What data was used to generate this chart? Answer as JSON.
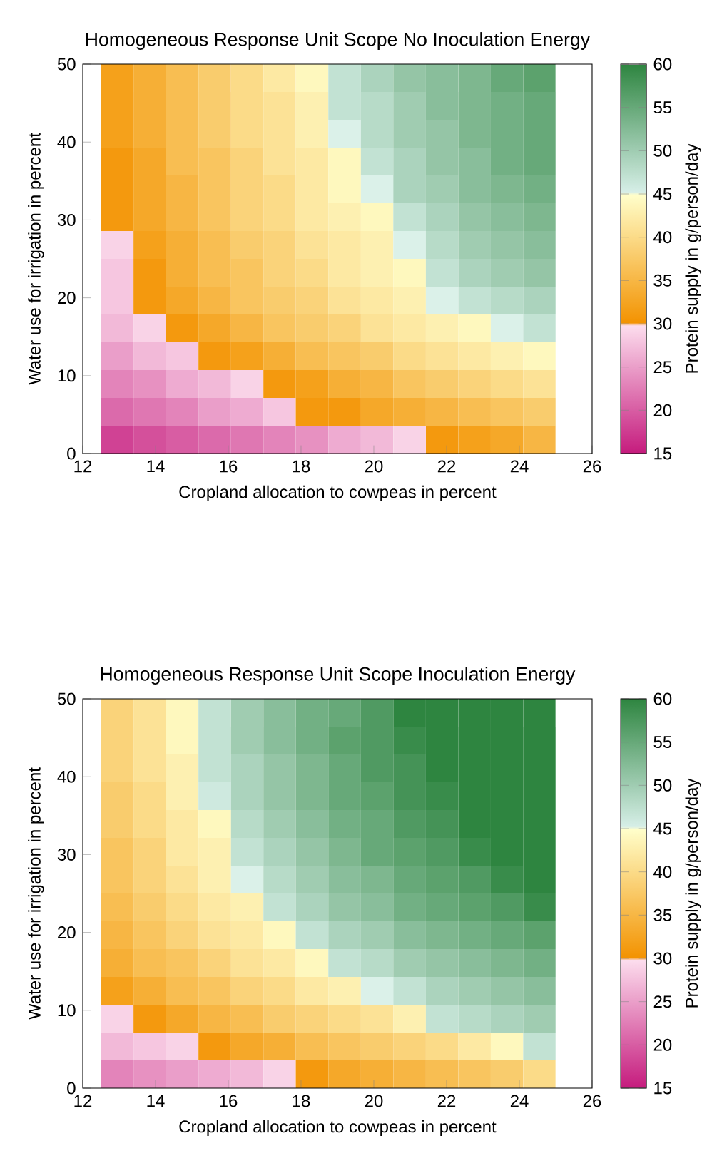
{
  "chart_data": [
    {
      "type": "heatmap",
      "title": "Homogeneous Response Unit Scope No Inoculation Energy",
      "xlabel": "Cropland allocation to cowpeas in percent",
      "ylabel": "Water use for irrigation in percent",
      "clabel": "Protein supply in g/person/day",
      "x": [
        12.95,
        13.84,
        14.73,
        15.63,
        16.52,
        17.41,
        18.3,
        19.2,
        20.09,
        20.98,
        21.88,
        22.77,
        23.66,
        24.55
      ],
      "y": [
        48.21,
        44.64,
        41.07,
        37.5,
        33.93,
        30.36,
        26.79,
        23.21,
        19.64,
        16.07,
        12.5,
        8.93,
        5.36,
        1.79
      ],
      "cells": [
        [
          32,
          34,
          36,
          38,
          40,
          42,
          44,
          47,
          49,
          51,
          52,
          53,
          55,
          56
        ],
        [
          32,
          34,
          36,
          38,
          40,
          41,
          43,
          47,
          48,
          50,
          52,
          53,
          54,
          55
        ],
        [
          32,
          34,
          36,
          38,
          40,
          41,
          43,
          45,
          48,
          50,
          51,
          53,
          54,
          55
        ],
        [
          31,
          33,
          36,
          37,
          39,
          41,
          42,
          44,
          47,
          49,
          51,
          52,
          54,
          55
        ],
        [
          31,
          33,
          35,
          37,
          39,
          40,
          42,
          44,
          45,
          49,
          50,
          52,
          53,
          54
        ],
        [
          31,
          33,
          35,
          37,
          39,
          40,
          42,
          43,
          44,
          47,
          49,
          51,
          52,
          53
        ],
        [
          29,
          32,
          34,
          36,
          38,
          39,
          41,
          42,
          43,
          45,
          48,
          50,
          51,
          52
        ],
        [
          28,
          31,
          34,
          36,
          37,
          39,
          40,
          42,
          43,
          44,
          47,
          49,
          50,
          51
        ],
        [
          28,
          31,
          33,
          35,
          37,
          38,
          39,
          41,
          42,
          43,
          45,
          47,
          48,
          49
        ],
        [
          27,
          29,
          31,
          33,
          35,
          37,
          38,
          39,
          41,
          42,
          43,
          44,
          45,
          47
        ],
        [
          25,
          27,
          28,
          31,
          32,
          34,
          36,
          37,
          38,
          40,
          41,
          42,
          43,
          44
        ],
        [
          23,
          24,
          26,
          27,
          29,
          31,
          32,
          34,
          35,
          37,
          38,
          39,
          40,
          41
        ],
        [
          21,
          22,
          23,
          25,
          26,
          28,
          31,
          31,
          33,
          34,
          35,
          36,
          37,
          38
        ],
        [
          18,
          19,
          20,
          21,
          22,
          23,
          24,
          26,
          27,
          29,
          31,
          32,
          33,
          35
        ]
      ],
      "clim": [
        15,
        60
      ],
      "cticks": [
        15,
        20,
        25,
        30,
        35,
        40,
        45,
        50,
        55,
        60
      ],
      "xlim": [
        12,
        26
      ],
      "xticks": [
        12,
        14,
        16,
        18,
        20,
        22,
        24,
        26
      ],
      "ylim": [
        0,
        50
      ],
      "yticks": [
        0,
        10,
        20,
        30,
        40,
        50
      ]
    },
    {
      "type": "heatmap",
      "title": "Homogeneous Response Unit Scope Inoculation Energy",
      "xlabel": "Cropland allocation to cowpeas in percent",
      "ylabel": "Water use for irrigation in percent",
      "clabel": "Protein supply in g/person/day",
      "x": [
        12.95,
        13.84,
        14.73,
        15.63,
        16.52,
        17.41,
        18.3,
        19.2,
        20.09,
        20.98,
        21.88,
        22.77,
        23.66,
        24.55
      ],
      "y": [
        48.21,
        44.64,
        41.07,
        37.5,
        33.93,
        30.36,
        26.79,
        23.21,
        19.64,
        16.07,
        12.5,
        8.93,
        5.36,
        1.79
      ],
      "cells": [
        [
          39,
          41,
          44,
          47,
          50,
          52,
          54,
          55,
          57,
          60,
          60,
          60,
          60,
          60
        ],
        [
          39,
          41,
          44,
          47,
          50,
          52,
          54,
          56,
          57,
          59,
          60,
          60,
          60,
          60
        ],
        [
          39,
          41,
          43,
          47,
          49,
          51,
          53,
          55,
          57,
          58,
          60,
          60,
          60,
          60
        ],
        [
          38,
          40,
          43,
          46,
          49,
          51,
          53,
          55,
          56,
          58,
          59,
          60,
          60,
          60
        ],
        [
          38,
          40,
          42,
          44,
          48,
          50,
          52,
          54,
          55,
          57,
          58,
          60,
          60,
          60
        ],
        [
          37,
          39,
          42,
          43,
          47,
          49,
          51,
          53,
          55,
          56,
          57,
          59,
          60,
          60
        ],
        [
          37,
          39,
          41,
          43,
          45,
          48,
          50,
          52,
          53,
          55,
          56,
          57,
          59,
          60
        ],
        [
          36,
          38,
          40,
          42,
          43,
          47,
          49,
          51,
          52,
          54,
          55,
          56,
          57,
          59
        ],
        [
          35,
          37,
          39,
          41,
          42,
          44,
          47,
          49,
          50,
          52,
          53,
          54,
          55,
          56
        ],
        [
          34,
          36,
          37,
          39,
          41,
          42,
          44,
          47,
          48,
          50,
          51,
          52,
          53,
          54
        ],
        [
          32,
          34,
          36,
          37,
          39,
          40,
          42,
          43,
          45,
          47,
          49,
          50,
          51,
          52
        ],
        [
          29,
          31,
          33,
          35,
          36,
          38,
          39,
          40,
          41,
          43,
          47,
          48,
          49,
          50
        ],
        [
          27,
          28,
          29,
          31,
          33,
          34,
          36,
          37,
          38,
          39,
          40,
          42,
          44,
          47
        ],
        [
          23,
          24,
          25,
          26,
          27,
          29,
          31,
          33,
          34,
          35,
          36,
          37,
          38,
          40
        ]
      ],
      "clim": [
        15,
        60
      ],
      "cticks": [
        15,
        20,
        25,
        30,
        35,
        40,
        45,
        50,
        55,
        60
      ],
      "xlim": [
        12,
        26
      ],
      "xticks": [
        12,
        14,
        16,
        18,
        20,
        22,
        24,
        26
      ],
      "ylim": [
        0,
        50
      ],
      "yticks": [
        0,
        10,
        20,
        30,
        40,
        50
      ]
    }
  ]
}
